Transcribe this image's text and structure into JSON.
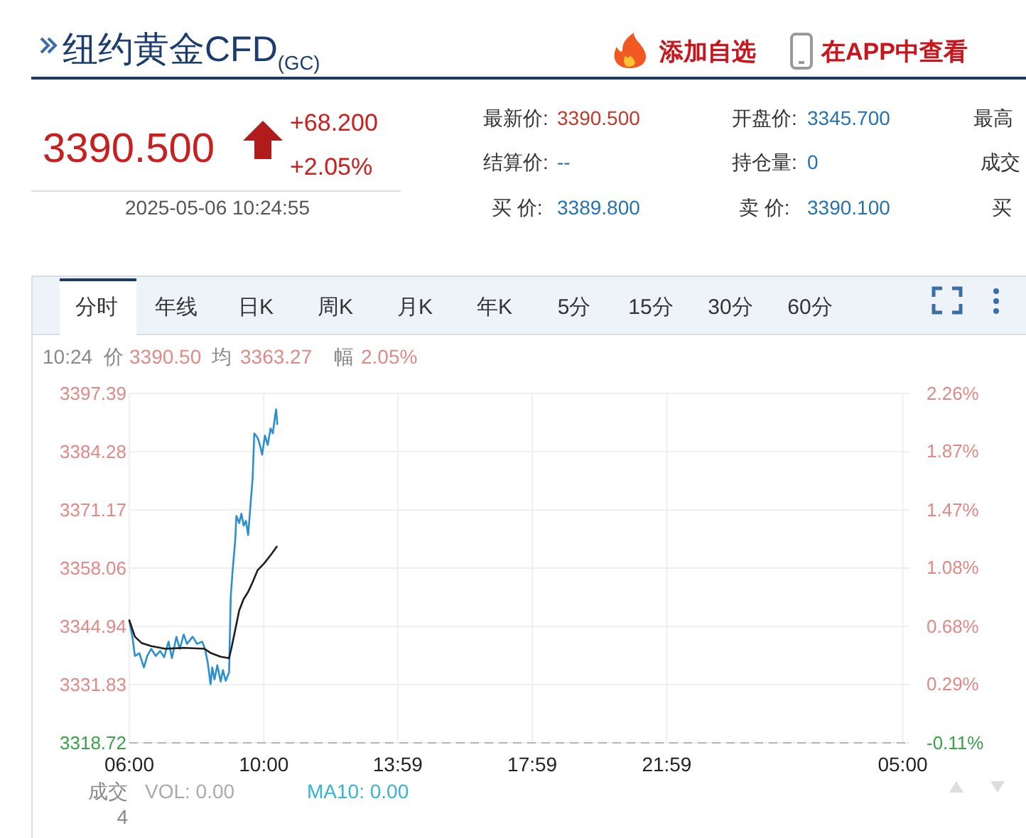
{
  "chart_data": {
    "type": "line",
    "title": "纽约黄金CFD$_{(GC)}$",
    "series": [
      {
        "color": "#2b8fd0",
        "x": [
          "2025-05-06T06:00",
          "2025-05-06T06:06",
          "2025-05-06T06:10",
          "2025-05-06T06:18",
          "2025-05-06T06:26",
          "2025-05-06T06:32",
          "2025-05-06T06:39",
          "2025-05-06T06:47",
          "2025-05-06T06:55",
          "2025-05-06T07:02",
          "2025-05-06T07:10",
          "2025-05-06T07:16",
          "2025-05-06T07:24",
          "2025-05-06T07:30",
          "2025-05-06T07:37",
          "2025-05-06T07:43",
          "2025-05-06T07:53",
          "2025-05-06T08:01",
          "2025-05-06T08:10",
          "2025-05-06T08:15",
          "2025-05-06T08:20",
          "2025-05-06T08:25",
          "2025-05-06T08:28",
          "2025-05-06T08:32",
          "2025-05-06T08:37",
          "2025-05-06T08:43",
          "2025-05-06T08:47",
          "2025-05-06T08:52",
          "2025-05-06T08:58",
          "2025-05-06T09:01",
          "2025-05-06T09:04",
          "2025-05-06T09:09",
          "2025-05-06T09:11",
          "2025-05-06T09:16",
          "2025-05-06T09:20",
          "2025-05-06T09:24",
          "2025-05-06T09:28",
          "2025-05-06T09:32",
          "2025-05-06T09:36",
          "2025-05-06T09:40",
          "2025-05-06T09:43",
          "2025-05-06T09:49",
          "2025-05-06T09:53",
          "2025-05-06T09:57",
          "2025-05-06T10:02",
          "2025-05-06T10:07",
          "2025-05-06T10:12",
          "2025-05-06T10:16",
          "2025-05-06T10:20",
          "2025-05-06T10:22",
          "2025-05-06T10:24"
        ],
        "values": [
          3346.3,
          3342.1,
          3338.3,
          3338.9,
          3335.7,
          3338.3,
          3339.9,
          3338.3,
          3339.4,
          3338.0,
          3341.5,
          3337.8,
          3342.6,
          3339.9,
          3343.1,
          3341.0,
          3342.6,
          3341.0,
          3341.5,
          3339.9,
          3336.7,
          3331.9,
          3335.7,
          3333.0,
          3336.2,
          3332.5,
          3335.1,
          3332.7,
          3334.6,
          3351.7,
          3357.0,
          3364.4,
          3369.8,
          3368.2,
          3370.3,
          3367.6,
          3368.7,
          3365.5,
          3371.9,
          3378.3,
          3388.4,
          3387.4,
          3385.8,
          3383.6,
          3387.9,
          3385.8,
          3389.5,
          3388.4,
          3392.2,
          3393.8,
          3390.5
        ]
      },
      {
        "color": "#1e1e1e",
        "x": [
          "2025-05-06T06:00",
          "2025-05-06T06:10",
          "2025-05-06T06:22",
          "2025-05-06T06:39",
          "2025-05-06T07:04",
          "2025-05-06T07:37",
          "2025-05-06T08:14",
          "2025-05-06T08:26",
          "2025-05-06T08:43",
          "2025-05-06T08:58",
          "2025-05-06T09:03",
          "2025-05-06T09:09",
          "2025-05-06T09:16",
          "2025-05-06T09:24",
          "2025-05-06T09:32",
          "2025-05-06T09:40",
          "2025-05-06T09:49",
          "2025-05-06T10:01",
          "2025-05-06T10:14",
          "2025-05-06T10:23"
        ],
        "values": [
          3346.3,
          3342.6,
          3341.2,
          3340.5,
          3339.9,
          3340.1,
          3339.9,
          3338.9,
          3338.1,
          3337.8,
          3340.5,
          3344.2,
          3348.5,
          3351.1,
          3352.7,
          3354.9,
          3357.6,
          3359.2,
          3361.3,
          3362.9
        ]
      }
    ],
    "xlim": [
      "2025-05-06T06:00",
      "2025-05-07T05:12"
    ],
    "xticks": [
      {
        "value": "2025-05-06T06:00",
        "label": "06:00"
      },
      {
        "value": "2025-05-06T10:00",
        "label": "10:00"
      },
      {
        "value": "2025-05-06T13:59",
        "label": "13:59"
      },
      {
        "value": "2025-05-06T17:59",
        "label": "17:59"
      },
      {
        "value": "2025-05-06T21:59",
        "label": "21:59"
      },
      {
        "value": "2025-05-07T05:00",
        "label": "05:00"
      }
    ],
    "ylim": [
      3318.72,
      3397.39
    ],
    "yticks": [
      3318.72,
      3331.83,
      3344.94,
      3358.06,
      3371.17,
      3384.28,
      3397.39
    ],
    "y2lim": [
      -0.11,
      2.26
    ],
    "y2ticks": [
      {
        "value": -0.11,
        "label": "-0.11%"
      },
      {
        "value": 0.29,
        "label": "0.29%"
      },
      {
        "value": 0.68,
        "label": "0.68%"
      },
      {
        "value": 1.08,
        "label": "1.08%"
      },
      {
        "value": 1.47,
        "label": "1.47%"
      },
      {
        "value": 1.87,
        "label": "1.87%"
      },
      {
        "value": 2.26,
        "label": "2.26%"
      }
    ],
    "grid": true,
    "annotations": [
      "添加自选",
      "在APP中查看",
      "3390.500",
      "+68.200",
      "+2.05%",
      "2025-05-06 10:24:55",
      "最新价:",
      "3390.500",
      "开盘价:",
      "3345.700",
      "最高",
      "结算价:",
      "--",
      "持仓量:",
      "0",
      "成交",
      "买 价:",
      "3389.800",
      "卖 价:",
      "3390.100",
      "买",
      "分时",
      "年线",
      "日K",
      "周K",
      "月K",
      "年K",
      "5分",
      "15分",
      "30分",
      "60分",
      "10:24",
      "价",
      "3390.50",
      "均",
      "3363.27",
      "幅",
      "2.05%",
      "成交",
      "4",
      "VOL: 0.00",
      "MA10: 0.00"
    ]
  }
}
